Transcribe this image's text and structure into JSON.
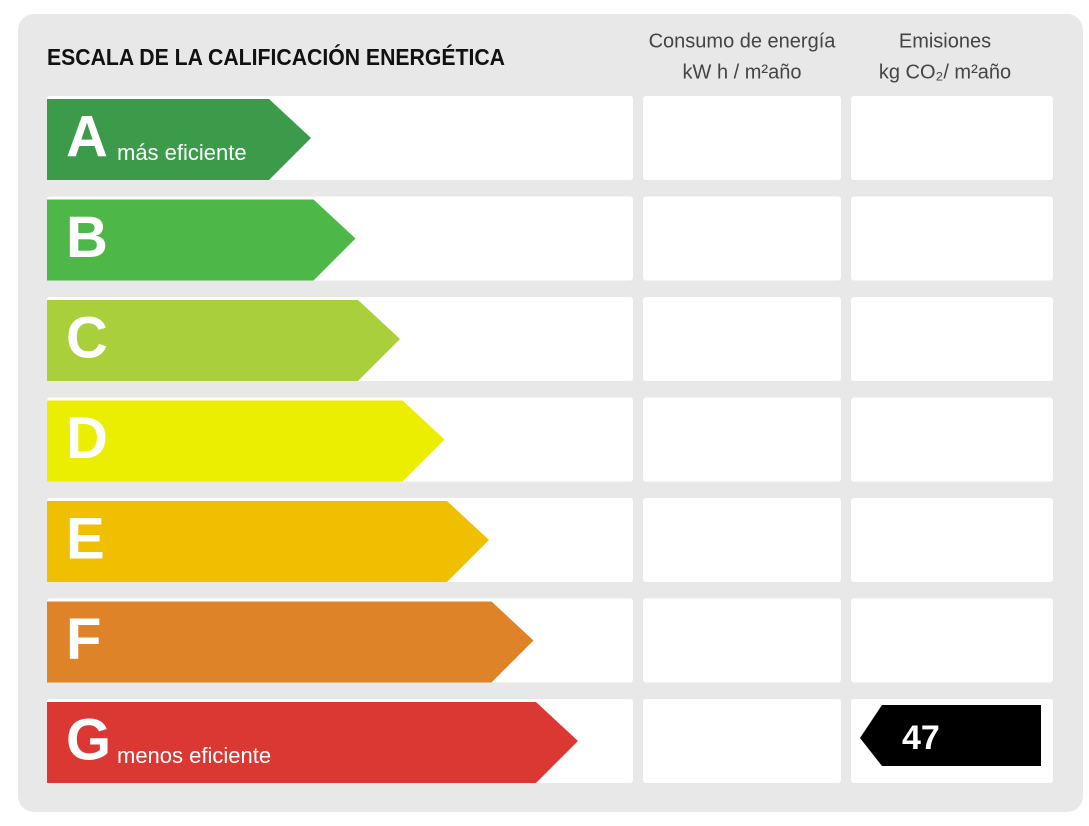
{
  "title": "ESCALA DE LA CALIFICACIÓN ENERGÉTICA",
  "columns": [
    {
      "name": "Consumo de energía",
      "unit": "kW h / m²año"
    },
    {
      "name": "Emisiones",
      "unit": "kg CO₂/ m²año"
    }
  ],
  "rows": [
    {
      "letter": "A",
      "note": "más eficiente",
      "color": "#3b9b4a"
    },
    {
      "letter": "B",
      "color": "#4db848"
    },
    {
      "letter": "C",
      "color": "#a9cf3a"
    },
    {
      "letter": "D",
      "color": "#ecee00"
    },
    {
      "letter": "E",
      "color": "#efbf00"
    },
    {
      "letter": "F",
      "color": "#de8327"
    },
    {
      "letter": "G",
      "note": "menos eficiente",
      "color": "#db3833",
      "emissions": 47
    }
  ]
}
